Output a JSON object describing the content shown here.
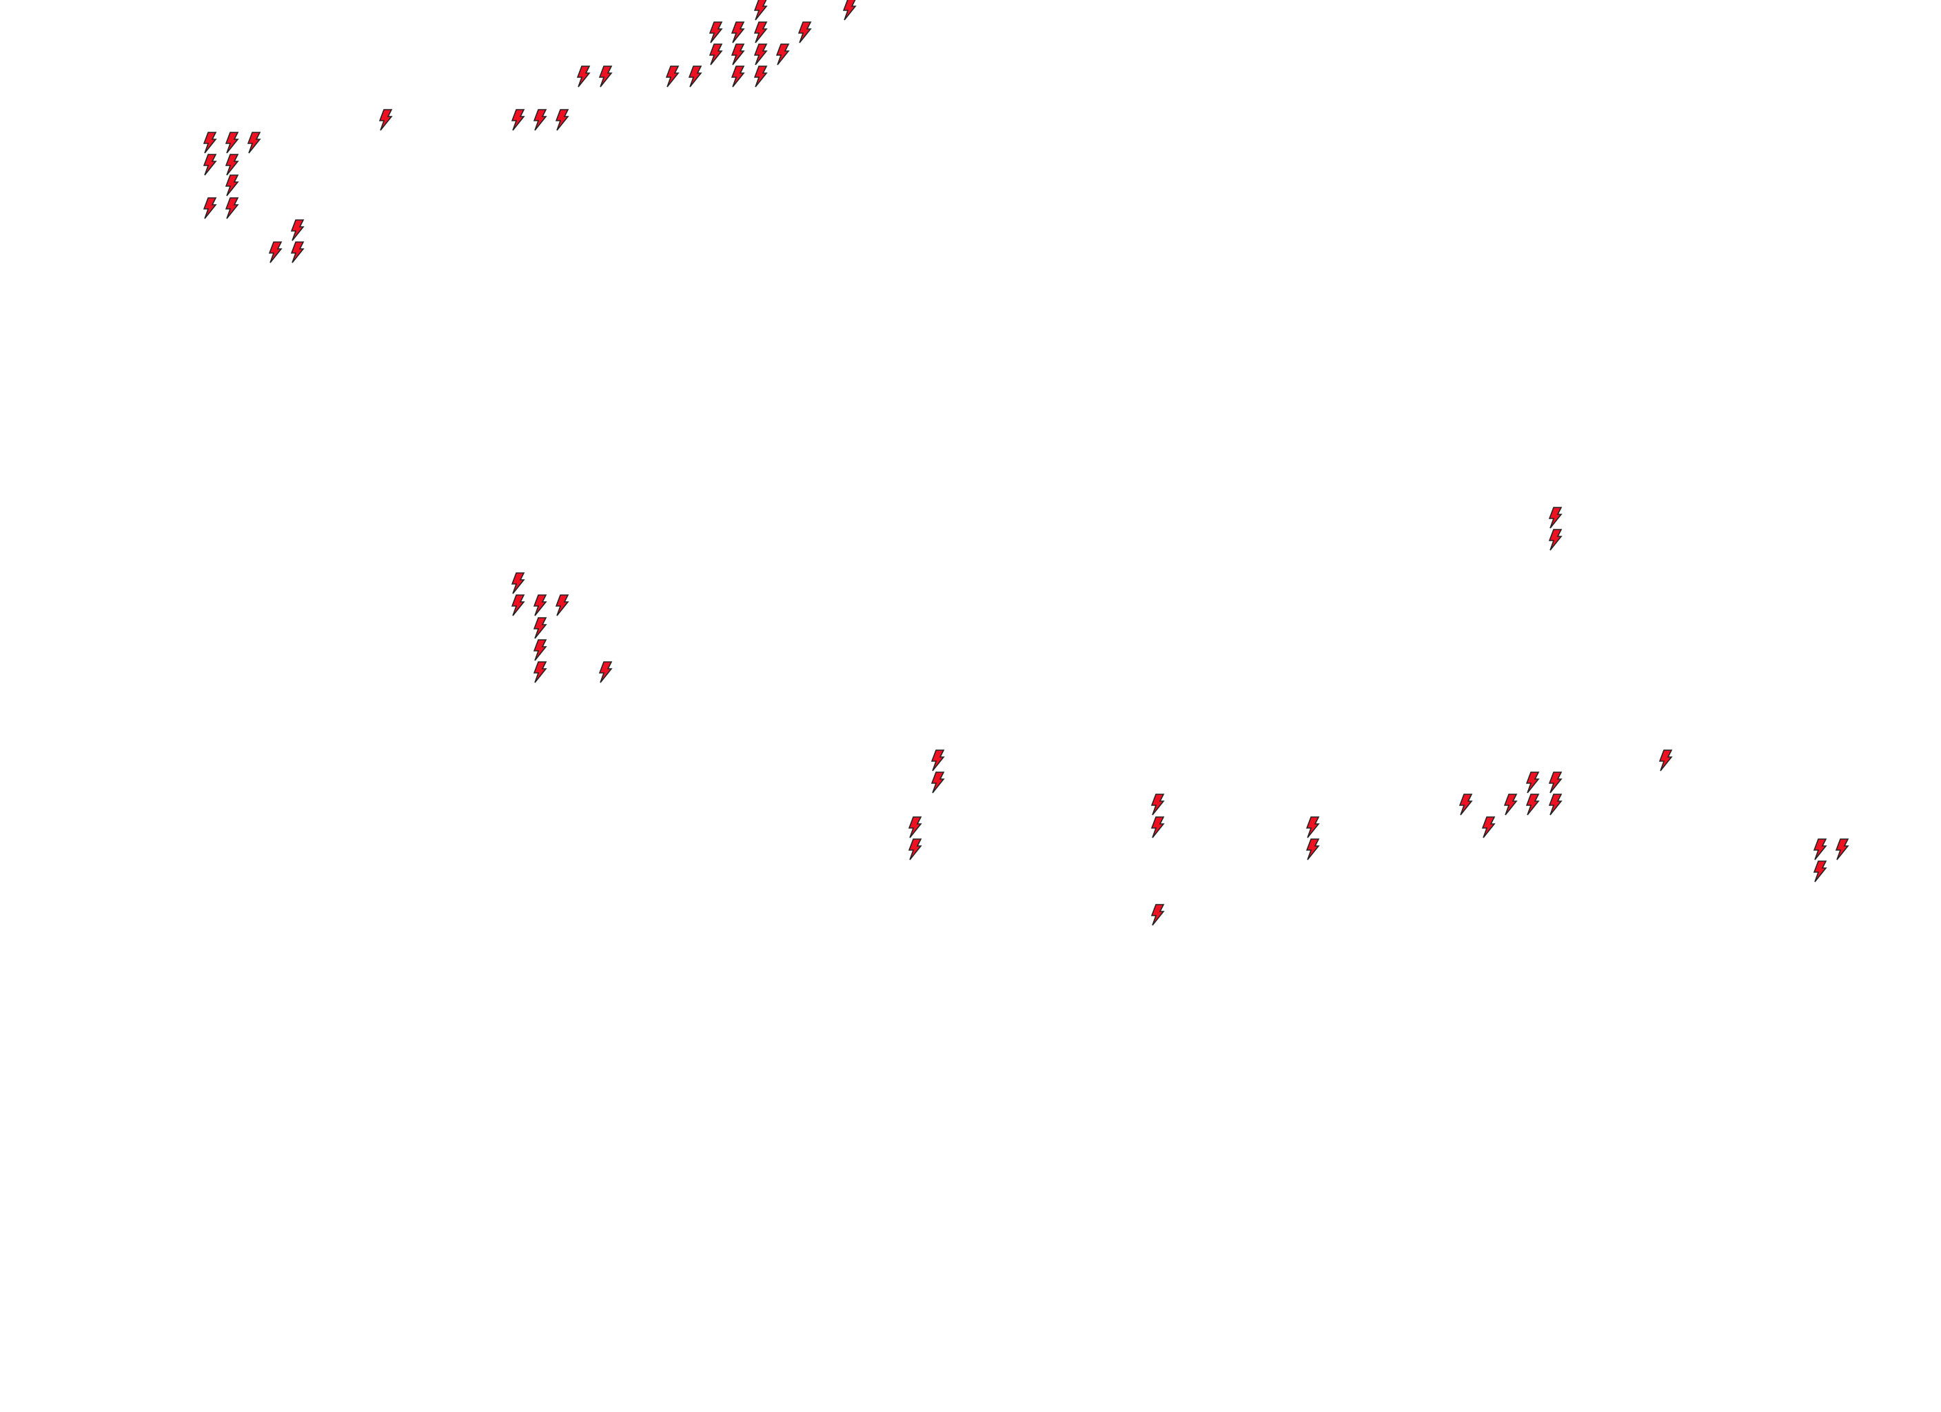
{
  "map": {
    "marker_icon": "lightning-bolt-icon",
    "marker_fill": "#ee1122",
    "marker_stroke": "#222222",
    "background": "#ffffff"
  }
}
